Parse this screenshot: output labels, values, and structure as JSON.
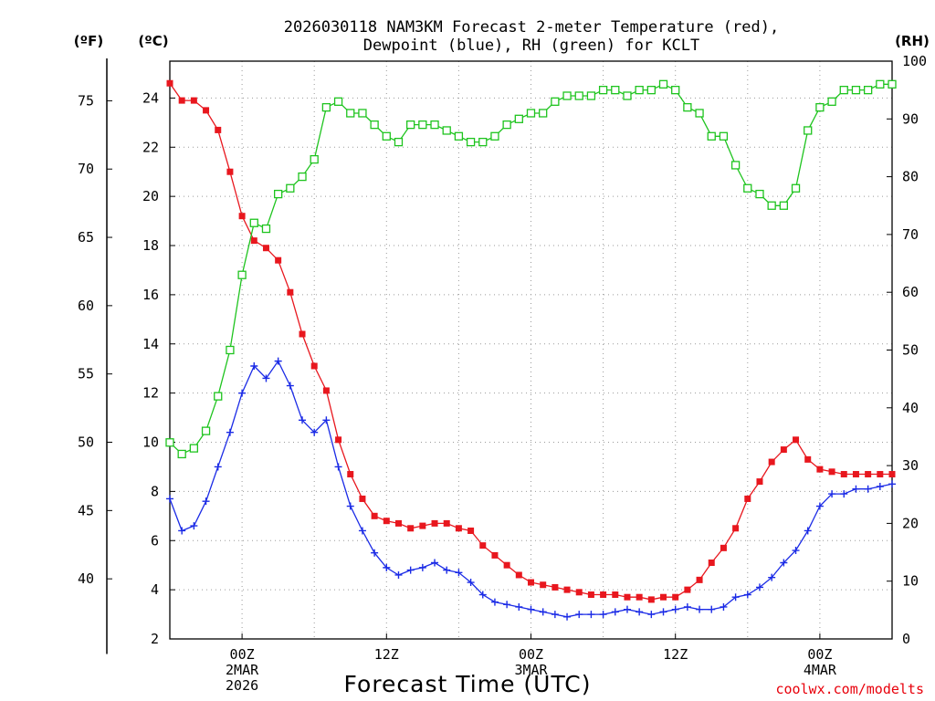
{
  "chart_data": {
    "type": "line",
    "title_line1": "2026030118 NAM3KM Forecast 2-meter Temperature (red),",
    "title_line2": "Dewpoint (blue), RH (green) for KCLT",
    "xlabel": "Forecast Time (UTC)",
    "credit": "coolwx.com/modelts",
    "units": {
      "f": "(ºF)",
      "c": "(ºC)",
      "rh": "(RH)"
    },
    "x_range_hours": [
      0,
      60
    ],
    "x_ticks": [
      {
        "hour": 6,
        "lines": [
          "00Z",
          "2MAR",
          "2026"
        ]
      },
      {
        "hour": 18,
        "lines": [
          "12Z"
        ]
      },
      {
        "hour": 30,
        "lines": [
          "00Z",
          "3MAR"
        ]
      },
      {
        "hour": 42,
        "lines": [
          "12Z"
        ]
      },
      {
        "hour": 54,
        "lines": [
          "00Z",
          "4MAR"
        ]
      }
    ],
    "y_c_range": [
      2,
      25.5
    ],
    "y_c_ticks": [
      "2",
      "4",
      "6",
      "8",
      "10",
      "12",
      "14",
      "16",
      "18",
      "20",
      "22",
      "24"
    ],
    "y_f_ticks": [
      "40",
      "45",
      "50",
      "55",
      "60",
      "65",
      "70",
      "75"
    ],
    "y_rh_range": [
      0,
      100
    ],
    "y_rh_ticks": [
      "0",
      "10",
      "20",
      "30",
      "40",
      "50",
      "60",
      "70",
      "80",
      "90",
      "100"
    ],
    "hours": [
      0,
      1,
      2,
      3,
      4,
      5,
      6,
      7,
      8,
      9,
      10,
      11,
      12,
      13,
      14,
      15,
      16,
      17,
      18,
      19,
      20,
      21,
      22,
      23,
      24,
      25,
      26,
      27,
      28,
      29,
      30,
      31,
      32,
      33,
      34,
      35,
      36,
      37,
      38,
      39,
      40,
      41,
      42,
      43,
      44,
      45,
      46,
      47,
      48,
      49,
      50,
      51,
      52,
      53,
      54,
      55,
      56,
      57,
      58,
      59,
      60
    ],
    "series": [
      {
        "name": "2-meter Temperature",
        "unit": "C",
        "color": "#e8171e",
        "marker": "filled-square",
        "values": [
          24.6,
          23.9,
          23.9,
          23.5,
          22.7,
          21.0,
          19.2,
          18.2,
          17.9,
          17.4,
          16.1,
          14.4,
          13.1,
          12.1,
          10.1,
          8.7,
          7.7,
          7.0,
          6.8,
          6.7,
          6.5,
          6.6,
          6.7,
          6.7,
          6.5,
          6.4,
          5.8,
          5.4,
          5.0,
          4.6,
          4.3,
          4.2,
          4.1,
          4.0,
          3.9,
          3.8,
          3.8,
          3.8,
          3.7,
          3.7,
          3.6,
          3.7,
          3.7,
          4.0,
          4.4,
          5.1,
          5.7,
          6.5,
          7.7,
          8.4,
          9.2,
          9.7,
          10.1,
          9.3,
          8.9,
          8.8,
          8.7,
          8.7,
          8.7,
          8.7,
          8.7
        ]
      },
      {
        "name": "Dewpoint",
        "unit": "C",
        "color": "#1b2be6",
        "marker": "plus",
        "values": [
          7.7,
          6.4,
          6.6,
          7.6,
          9.0,
          10.4,
          12.0,
          13.1,
          12.6,
          13.3,
          12.3,
          10.9,
          10.4,
          10.9,
          9.0,
          7.4,
          6.4,
          5.5,
          4.9,
          4.6,
          4.8,
          4.9,
          5.1,
          4.8,
          4.7,
          4.3,
          3.8,
          3.5,
          3.4,
          3.3,
          3.2,
          3.1,
          3.0,
          2.9,
          3.0,
          3.0,
          3.0,
          3.1,
          3.2,
          3.1,
          3.0,
          3.1,
          3.2,
          3.3,
          3.2,
          3.2,
          3.3,
          3.7,
          3.8,
          4.1,
          4.5,
          5.1,
          5.6,
          6.4,
          7.4,
          7.9,
          7.9,
          8.1,
          8.1,
          8.2,
          8.3
        ]
      },
      {
        "name": "RH",
        "unit": "%",
        "color": "#1ec41e",
        "marker": "open-square",
        "values": [
          34,
          32,
          33,
          36,
          42,
          50,
          63,
          72,
          71,
          77,
          78,
          80,
          83,
          92,
          93,
          91,
          91,
          89,
          87,
          86,
          89,
          89,
          89,
          88,
          87,
          86,
          86,
          87,
          89,
          90,
          91,
          91,
          93,
          94,
          94,
          94,
          95,
          95,
          94,
          95,
          95,
          96,
          95,
          92,
          91,
          87,
          87,
          82,
          78,
          77,
          75,
          75,
          78,
          88,
          92,
          93,
          95,
          95,
          95,
          96,
          96
        ]
      }
    ]
  }
}
